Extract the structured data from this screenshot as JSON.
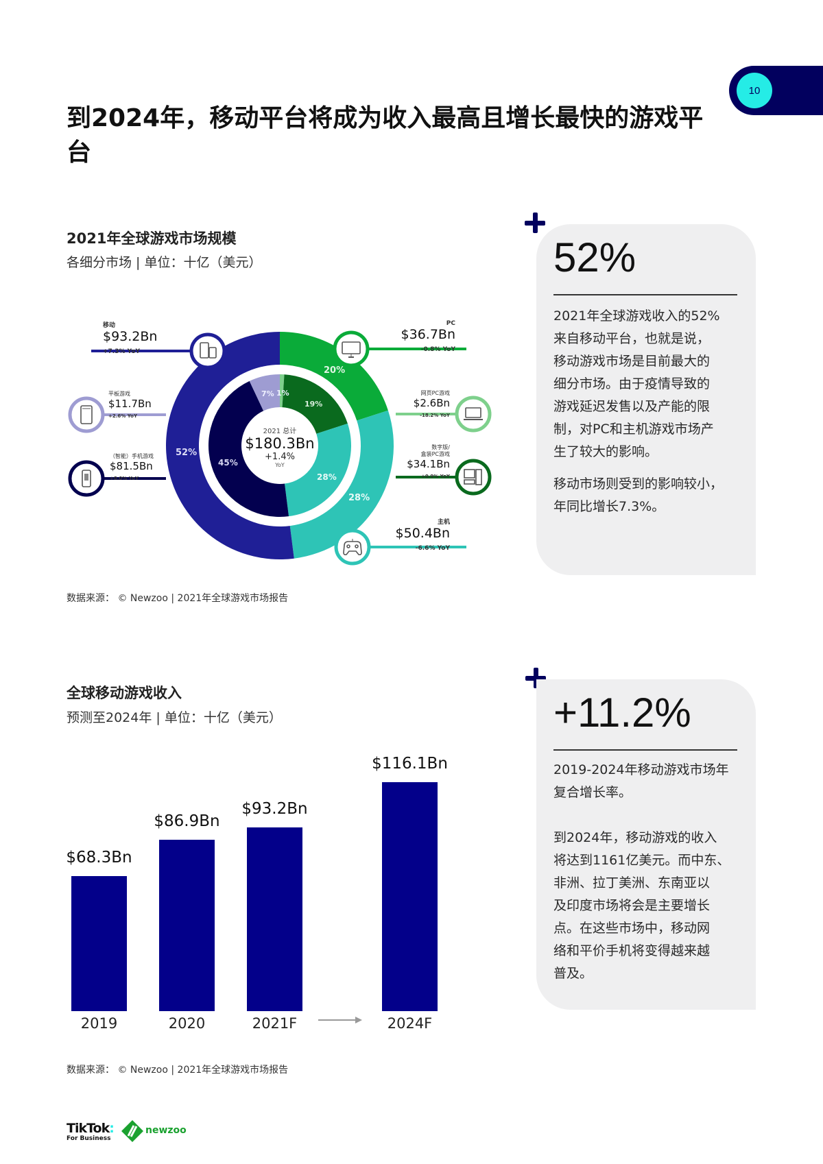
{
  "page": {
    "number": "10",
    "title": "到2024年，移动平台将成为收入最高且增长最快的游戏平台"
  },
  "section1": {
    "title": "2021年全球游戏市场规模",
    "subtitle": "各细分市场 | 单位：十亿（美元）",
    "source": "数据来源： © Newzoo | 2021年全球游戏市场报告",
    "center": {
      "caption": "2021 总计",
      "total": "$180.3Bn",
      "growth": "+1.4%",
      "growth_unit": "YoY"
    },
    "callouts": {
      "mobile": {
        "label": "移动",
        "value": "$93.2Bn",
        "yoy": "+7.3% YoY",
        "icon": "phone-tablet-icon"
      },
      "tablet": {
        "label": "平板游戏",
        "value": "$11.7Bn",
        "yoy": "+2.6% YoY",
        "icon": "tablet-icon"
      },
      "smartphone": {
        "label": "（智能）手机游戏",
        "value": "$81.5Bn",
        "yoy": "+8.0% YoY",
        "icon": "smartphone-icon"
      },
      "pc": {
        "label": "PC",
        "value": "$36.7Bn",
        "yoy": "-0.8% YoY",
        "icon": "monitor-icon"
      },
      "browser_pc": {
        "label": "网页PC游戏",
        "value": "$2.6Bn",
        "yoy": "-18.2% YoY",
        "icon": "laptop-icon"
      },
      "boxed_pc": {
        "label_line1": "数字版/",
        "label_line2": "盒装PC游戏",
        "value": "$34.1Bn",
        "yoy": "+0.9% YoY",
        "icon": "desktop-pc-icon"
      },
      "console": {
        "label": "主机",
        "value": "$50.4Bn",
        "yoy": "-6.6% YoY",
        "icon": "gamepad-icon"
      }
    },
    "ring_labels": {
      "outer_pc": "20%",
      "outer_console": "28%",
      "outer_mobile": "52%",
      "inner_browser": "1%",
      "inner_boxed": "19%",
      "inner_console": "28%",
      "inner_smartphone": "45%",
      "inner_tablet": "7%"
    }
  },
  "section2": {
    "title": "全球移动游戏收入",
    "subtitle": "预测至2024年 | 单位：十亿（美元）",
    "source": "数据来源： © Newzoo | 2021年全球游戏市场报告"
  },
  "card1": {
    "stat": "52%",
    "paragraphs": [
      [
        "2021年全球游戏收入的52%",
        "来自移动平台，也就是说，",
        "移动游戏市场是目前最大的",
        "细分市场。由于疫情导致的",
        "游戏延迟发售以及产能的限",
        "制，对PC和主机游戏市场产",
        "生了较大的影响。"
      ],
      [
        "移动市场则受到的影响较小，",
        "年同比增长7.3%。"
      ]
    ]
  },
  "card2": {
    "stat": "+11.2%",
    "paragraphs": [
      [
        "2019-2024年移动游戏市场年",
        "复合增长率。"
      ],
      [
        "到2024年，移动游戏的收入",
        "将达到1161亿美元。而中东、",
        "非洲、拉丁美洲、东南亚以",
        "及印度市场将会是主要增长",
        "点。在这些市场中，移动网",
        "络和平价手机将变得越来越",
        "普及。"
      ]
    ]
  },
  "footer": {
    "brand1": "TikTok",
    "brand1_sub": "For Business",
    "brand2": "newzoo"
  },
  "colors": {
    "navy": "#02005e",
    "cyan": "#25ece6",
    "mobile": "#1f1f96",
    "smartphone": "#03004f",
    "tablet": "#9e9cd2",
    "pc": "#0aab39",
    "boxed_pc": "#0a6a1e",
    "browser_pc": "#7ed08c",
    "console": "#2ec4b6",
    "bar": "#03008a"
  },
  "chart_data": [
    {
      "type": "pie",
      "title": "2021年全球游戏市场规模",
      "subtitle": "各细分市场 | 单位：十亿（美元）",
      "total": 180.3,
      "total_label": "2021 总计 $180.3Bn +1.4% YoY",
      "outer_ring": [
        {
          "name": "PC",
          "value": 36.7,
          "share_pct": 20,
          "yoy": "-0.8%"
        },
        {
          "name": "主机",
          "value": 50.4,
          "share_pct": 28,
          "yoy": "-6.6%"
        },
        {
          "name": "移动",
          "value": 93.2,
          "share_pct": 52,
          "yoy": "+7.3%"
        }
      ],
      "inner_ring": [
        {
          "name": "网页PC游戏",
          "value": 2.6,
          "share_pct": 1,
          "yoy": "-18.2%"
        },
        {
          "name": "数字版/盒装PC游戏",
          "value": 34.1,
          "share_pct": 19,
          "yoy": "+0.9%"
        },
        {
          "name": "主机",
          "value": 50.4,
          "share_pct": 28,
          "yoy": "-6.6%"
        },
        {
          "name": "（智能）手机游戏",
          "value": 81.5,
          "share_pct": 45,
          "yoy": "+8.0%"
        },
        {
          "name": "平板游戏",
          "value": 11.7,
          "share_pct": 7,
          "yoy": "+2.6%"
        }
      ]
    },
    {
      "type": "bar",
      "title": "全球移动游戏收入",
      "subtitle": "预测至2024年 | 单位：十亿（美元）",
      "categories": [
        "2019",
        "2020",
        "2021F",
        "2024F"
      ],
      "values": [
        68.3,
        86.9,
        93.2,
        116.1
      ],
      "value_labels": [
        "$68.3Bn",
        "$86.9Bn",
        "$93.2Bn",
        "$116.1Bn"
      ],
      "xlabel": "",
      "ylabel": "",
      "grid": false,
      "ylim": [
        0,
        120
      ]
    }
  ]
}
